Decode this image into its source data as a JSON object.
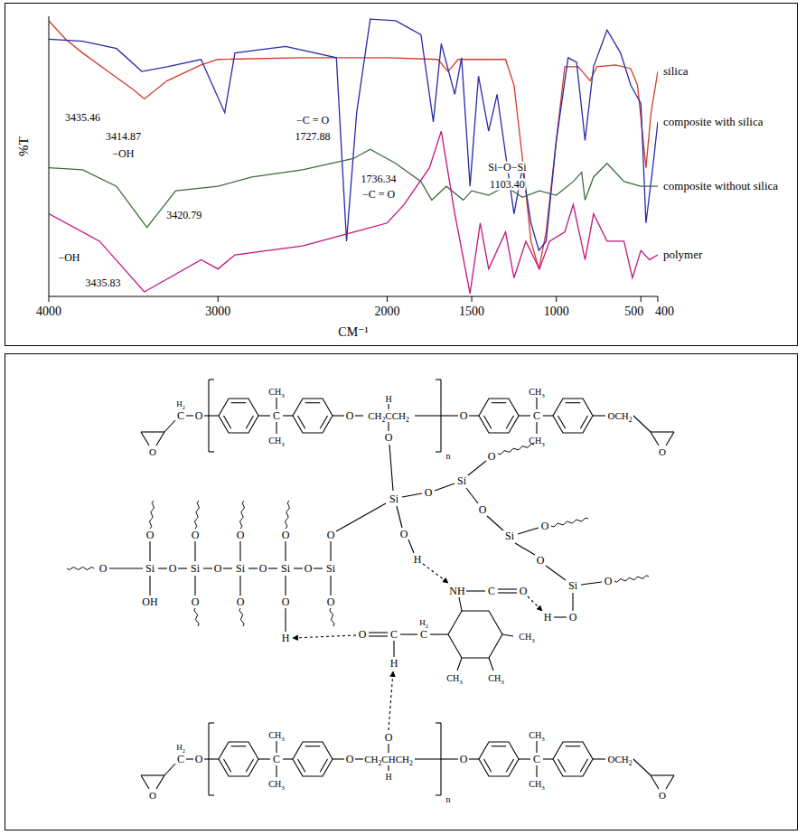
{
  "chart_data": {
    "type": "line",
    "x_label": "CM⁻¹",
    "y_label": "%T",
    "xlim": [
      4000,
      400
    ],
    "xticks": [
      4000,
      3000,
      2000,
      1500,
      1000,
      500,
      400
    ],
    "ylim": [
      0,
      100
    ],
    "tick_labels": "x",
    "grid": false,
    "series": [
      {
        "name": "silica",
        "color": "#d23a2c",
        "x": [
          4000,
          3900,
          3800,
          3650,
          3500,
          3435,
          3300,
          3100,
          3000,
          2500,
          2000,
          1700,
          1640,
          1580,
          1300,
          1250,
          1200,
          1150,
          1103,
          1060,
          1000,
          950,
          870,
          800,
          760,
          650,
          560,
          520,
          470,
          440,
          400
        ],
        "values": [
          98.4,
          91.8,
          86.9,
          80.3,
          73.8,
          70.5,
          77.0,
          82.6,
          84.6,
          85.2,
          85.2,
          84.6,
          80.3,
          84.6,
          84.6,
          75.4,
          49.2,
          19.7,
          9.8,
          23.0,
          55.7,
          82.0,
          82.0,
          77.0,
          82.0,
          82.6,
          81.3,
          75.4,
          45.9,
          65.6,
          80.3
        ]
      },
      {
        "name": "composite with silica",
        "color": "#2a2aa8",
        "x": [
          4000,
          3800,
          3600,
          3450,
          3300,
          3100,
          2960,
          2900,
          2600,
          2300,
          2240,
          2180,
          2100,
          1950,
          1800,
          1727,
          1680,
          1600,
          1560,
          1510,
          1460,
          1400,
          1350,
          1250,
          1200,
          1150,
          1103,
          1060,
          1000,
          930,
          880,
          830,
          780,
          700,
          620,
          560,
          500,
          470,
          430,
          400
        ],
        "values": [
          91.8,
          91.1,
          88.5,
          80.3,
          82.0,
          84.6,
          65.6,
          86.9,
          89.2,
          85.2,
          19.7,
          65.6,
          99.0,
          98.4,
          93.4,
          62.3,
          90.2,
          72.1,
          85.2,
          39.3,
          78.7,
          59.0,
          72.1,
          29.5,
          45.9,
          26.2,
          16.4,
          19.7,
          55.7,
          85.2,
          83.6,
          55.7,
          82.0,
          95.1,
          86.9,
          75.4,
          68.9,
          26.2,
          45.9,
          62.3
        ]
      },
      {
        "name": "composite without silica",
        "color": "#3e6b3e",
        "x": [
          4000,
          3800,
          3600,
          3420,
          3250,
          3000,
          2800,
          2500,
          2200,
          2100,
          1950,
          1800,
          1736,
          1650,
          1550,
          1500,
          1400,
          1300,
          1200,
          1100,
          1000,
          900,
          850,
          830,
          780,
          700,
          600,
          500,
          400
        ],
        "values": [
          45.9,
          45.2,
          39.3,
          24.6,
          37.7,
          39.3,
          42.6,
          45.2,
          49.2,
          52.5,
          47.5,
          41.0,
          34.4,
          39.3,
          34.4,
          37.7,
          36.1,
          39.3,
          35.4,
          37.7,
          36.1,
          41.0,
          44.3,
          34.4,
          42.6,
          47.5,
          41.0,
          39.3,
          39.3
        ]
      },
      {
        "name": "polymer",
        "color": "#c0157e",
        "x": [
          4000,
          3700,
          3435,
          3100,
          3000,
          2900,
          2500,
          2000,
          1900,
          1750,
          1680,
          1600,
          1510,
          1450,
          1400,
          1300,
          1250,
          1180,
          1100,
          1040,
          950,
          900,
          830,
          780,
          700,
          600,
          550,
          500,
          450,
          400
        ],
        "values": [
          29.5,
          19.7,
          1.6,
          13.1,
          9.8,
          14.8,
          18.0,
          26.2,
          32.8,
          45.9,
          59.0,
          29.5,
          1.0,
          26.2,
          9.8,
          23.0,
          6.6,
          19.7,
          9.8,
          19.7,
          23.0,
          32.8,
          13.1,
          29.5,
          19.7,
          19.7,
          6.6,
          16.4,
          13.1,
          14.8
        ]
      }
    ],
    "annotations": [
      {
        "text": "3435.46",
        "x": 3800,
        "y": 64
      },
      {
        "text": "3414.87",
        "x": 3560,
        "y": 57
      },
      {
        "text": "−OH",
        "x": 3560,
        "y": 51
      },
      {
        "text": "−C = O",
        "x": 2440,
        "y": 63
      },
      {
        "text": "1727.88",
        "x": 2440,
        "y": 57
      },
      {
        "text": "3420.79",
        "x": 3200,
        "y": 29
      },
      {
        "text": "1736.34",
        "x": 2050,
        "y": 42
      },
      {
        "text": "−C = O",
        "x": 2050,
        "y": 36.5
      },
      {
        "text": "Si−O−Si",
        "x": 1290,
        "y": 46
      },
      {
        "text": "1103.40",
        "x": 1290,
        "y": 40
      },
      {
        "text": "−OH",
        "x": 3880,
        "y": 14
      },
      {
        "text": "3435.83",
        "x": 3680,
        "y": 5
      }
    ]
  },
  "structure": {
    "chains": [
      {
        "methylene": "H2",
        "carbon": "C",
        "ether_oxygen": "O",
        "methyl": "CH3",
        "linker": "CH2CCH2",
        "linker_hydrogen": "H",
        "linker_oxygen": "O",
        "repeat": "n",
        "end_group": "OCH2",
        "epoxide_oxygen": "O"
      },
      {
        "methylene": "H2",
        "carbon": "C",
        "ether_oxygen": "O",
        "methyl": "CH3",
        "linker": "CH2CHCH2",
        "linker_hydrogen": "H",
        "linker_oxygen": "O",
        "repeat": "n",
        "end_group": "OCH2",
        "epoxide_oxygen": "O"
      }
    ],
    "silica": {
      "silicon": "Si",
      "oxygen": "O",
      "hydroxyl": "OH",
      "hydrogen": "H"
    },
    "hardener": {
      "amine": "NH",
      "carbon": "C",
      "oxygen": "O",
      "hydrogen": "H",
      "methylene": "H2",
      "methyl": "CH3"
    }
  }
}
